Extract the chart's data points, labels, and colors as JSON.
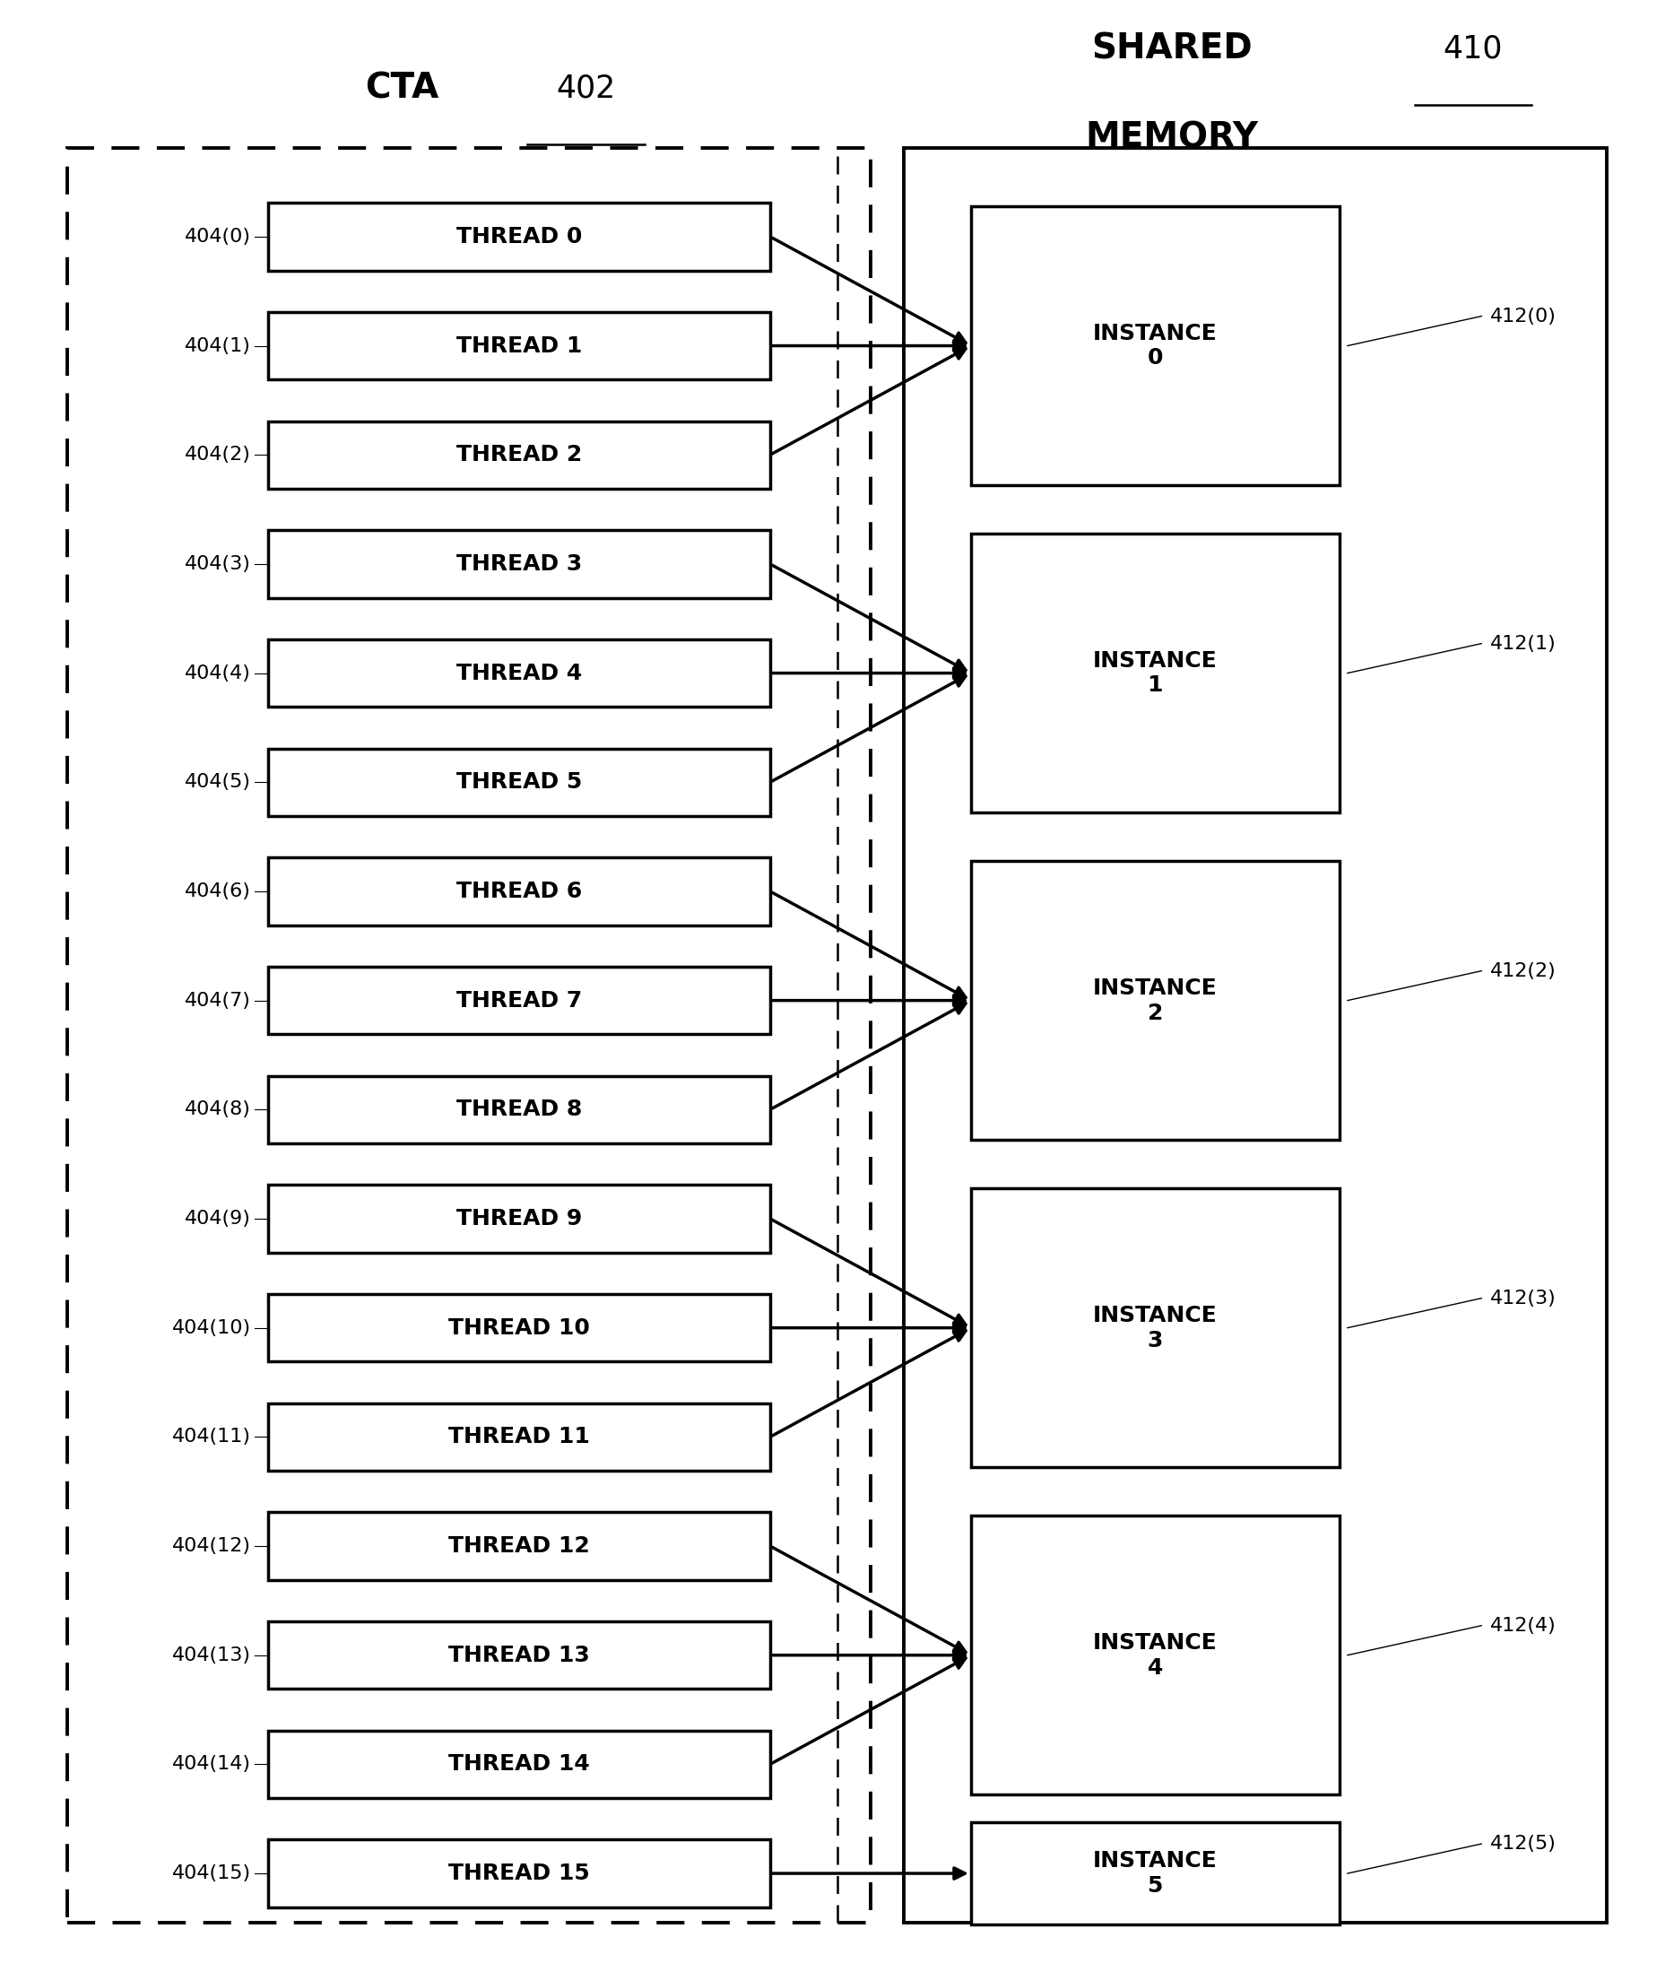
{
  "fig_width": 18.67,
  "fig_height": 21.99,
  "bg_color": "#ffffff",
  "thread_labels": [
    "THREAD 0",
    "THREAD 1",
    "THREAD 2",
    "THREAD 3",
    "THREAD 4",
    "THREAD 5",
    "THREAD 6",
    "THREAD 7",
    "THREAD 8",
    "THREAD 9",
    "THREAD 10",
    "THREAD 11",
    "THREAD 12",
    "THREAD 13",
    "THREAD 14",
    "THREAD 15"
  ],
  "thread_ids": [
    "404(0)",
    "404(1)",
    "404(2)",
    "404(3)",
    "404(4)",
    "404(5)",
    "404(6)",
    "404(7)",
    "404(8)",
    "404(9)",
    "404(10)",
    "404(11)",
    "404(12)",
    "404(13)",
    "404(14)",
    "404(15)"
  ],
  "instance_labels": [
    "INSTANCE\n0",
    "INSTANCE\n1",
    "INSTANCE\n2",
    "INSTANCE\n3",
    "INSTANCE\n4",
    "INSTANCE\n5"
  ],
  "instance_ids": [
    "412(0)",
    "412(1)",
    "412(2)",
    "412(3)",
    "412(4)",
    "412(5)"
  ],
  "thread_to_instance": [
    0,
    0,
    0,
    1,
    1,
    1,
    2,
    2,
    2,
    3,
    3,
    3,
    4,
    4,
    4,
    5
  ],
  "inst_groups": [
    [
      0,
      1,
      2
    ],
    [
      3,
      4,
      5
    ],
    [
      6,
      7,
      8
    ],
    [
      9,
      10,
      11
    ],
    [
      12,
      13,
      14
    ],
    [
      15
    ]
  ],
  "cta_label": "CTA",
  "cta_ref": "402",
  "sm_label_line1": "SHARED",
  "sm_label_line2": "MEMORY",
  "sm_ref": "410"
}
